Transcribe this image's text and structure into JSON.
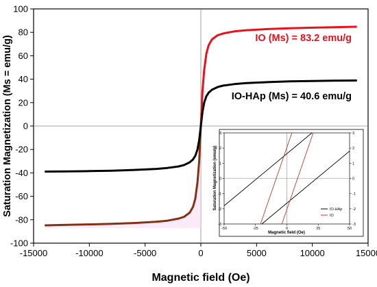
{
  "chart_data": [
    {
      "type": "line",
      "xlabel": "Magnetic field (Oe)",
      "ylabel": "Saturation Magnetization (Ms = emu/g)",
      "xlim": [
        -15000,
        15000
      ],
      "ylim": [
        -100,
        100
      ],
      "xticks": [
        "-15000",
        "-10000",
        "-5000",
        "0",
        "5000",
        "10000",
        "15000"
      ],
      "yticks": [
        "-100",
        "-80",
        "-60",
        "-40",
        "-20",
        "0",
        "20",
        "40",
        "60",
        "80",
        "100"
      ],
      "grid": false,
      "series": [
        {
          "name": "IO",
          "color": "#e8111c",
          "x": [
            -14000,
            -12000,
            -10000,
            -8000,
            -6000,
            -4000,
            -3000,
            -2000,
            -1500,
            -1000,
            -700,
            -500,
            -300,
            -150,
            0,
            150,
            300,
            500,
            700,
            1000,
            1500,
            2000,
            3000,
            4000,
            6000,
            8000,
            10000,
            12000,
            14000
          ],
          "values": [
            -84.8,
            -84.4,
            -84.0,
            -83.5,
            -82.8,
            -81.7,
            -80.8,
            -79.0,
            -77.5,
            -74.0,
            -69.0,
            -62.0,
            -48.0,
            -30.0,
            0.0,
            30.0,
            48.0,
            62.0,
            69.0,
            74.0,
            77.5,
            79.0,
            80.8,
            81.7,
            82.8,
            83.5,
            84.0,
            84.4,
            84.8
          ]
        },
        {
          "name": "IO-HAp",
          "color": "#000000",
          "x": [
            -14000,
            -12000,
            -10000,
            -8000,
            -6000,
            -4000,
            -3000,
            -2000,
            -1500,
            -1000,
            -700,
            -500,
            -300,
            -150,
            0,
            150,
            300,
            500,
            700,
            1000,
            1500,
            2000,
            3000,
            4000,
            6000,
            8000,
            10000,
            12000,
            14000
          ],
          "values": [
            -38.9,
            -38.7,
            -38.5,
            -38.1,
            -37.5,
            -36.6,
            -35.8,
            -34.5,
            -33.3,
            -31.0,
            -28.5,
            -25.5,
            -20.0,
            -12.0,
            0.0,
            12.0,
            20.0,
            25.5,
            28.5,
            31.0,
            33.3,
            34.5,
            35.8,
            36.6,
            37.5,
            38.1,
            38.5,
            38.7,
            38.9
          ]
        }
      ],
      "annotations": [
        "IO (Ms) = 83.2 emu/g",
        "IO-HAp (Ms) = 40.6 emu/g"
      ]
    },
    {
      "type": "line",
      "xlabel": "Magnetic field (Oe)",
      "ylabel": "Saturation Magnetization (emu/g)",
      "xlim": [
        -50,
        50
      ],
      "ylim": [
        -3,
        3
      ],
      "xticks": [
        "-50",
        "-25",
        "0",
        "25",
        "50"
      ],
      "yticks": [
        "-3",
        "-2",
        "-1",
        "0",
        "1",
        "2",
        "3"
      ],
      "legend": "bottom-right",
      "series": [
        {
          "name": "IO-HAp",
          "color": "#000000",
          "x_upper": [
            -50,
            20
          ],
          "y_upper": [
            -1.8,
            3.0
          ],
          "x_lower": [
            -20,
            50
          ],
          "y_lower": [
            -3.0,
            1.8
          ]
        },
        {
          "name": "IO",
          "color": "#c0392b",
          "x_upper": [
            -21,
            4
          ],
          "y_upper": [
            -3.0,
            3.0
          ],
          "x_lower": [
            -4,
            21
          ],
          "y_lower": [
            -3.0,
            3.0
          ]
        }
      ]
    }
  ]
}
